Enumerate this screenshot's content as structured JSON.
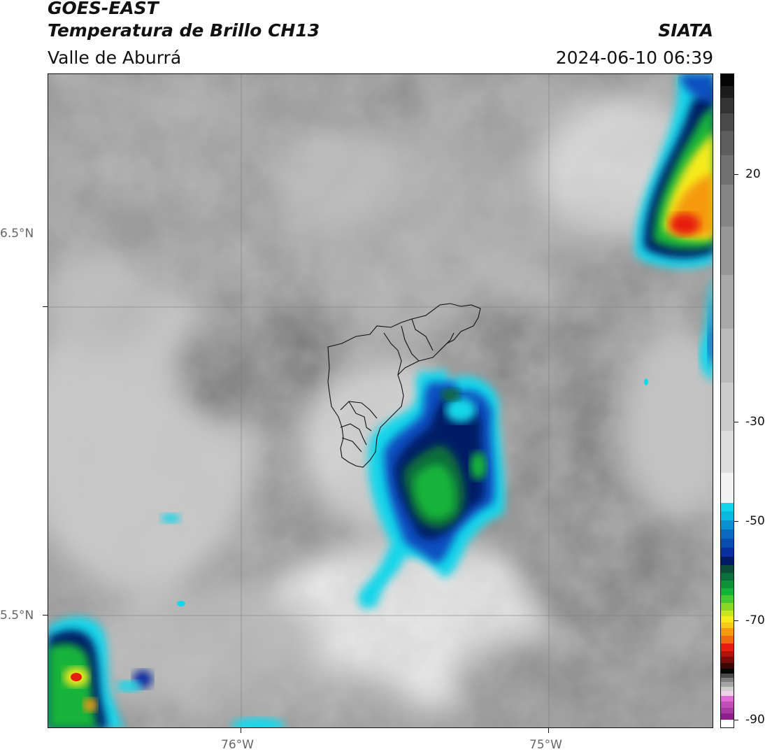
{
  "header": {
    "satellite": "GOES-EAST",
    "product": "Temperatura de Brillo CH13",
    "region": "Valle de Aburrá",
    "agency": "SIATA",
    "timestamp": "2024-06-10 06:39"
  },
  "map": {
    "lat_ticks": [
      "6.5°N",
      "5.5°N"
    ],
    "lon_ticks": [
      "76°W",
      "75°W"
    ]
  },
  "colorbar": {
    "tick_labels": [
      "20",
      "-30",
      "-50",
      "-70",
      "-90"
    ],
    "tick_values": [
      20,
      -30,
      -50,
      -70,
      -90
    ],
    "range": [
      -95,
      35
    ],
    "colors": {
      "warm_white": "#f2f2f2",
      "cyan": "#12d6ea",
      "blue": "#0a2fa0",
      "navy": "#001a66",
      "green": "#12b43a",
      "yellow": "#f6ea1a",
      "orange": "#f59a10",
      "red": "#e61e10",
      "dark_red": "#7a0a0a",
      "black": "#050505",
      "pink": "#e16ad3",
      "purple": "#8a1f8e"
    }
  }
}
